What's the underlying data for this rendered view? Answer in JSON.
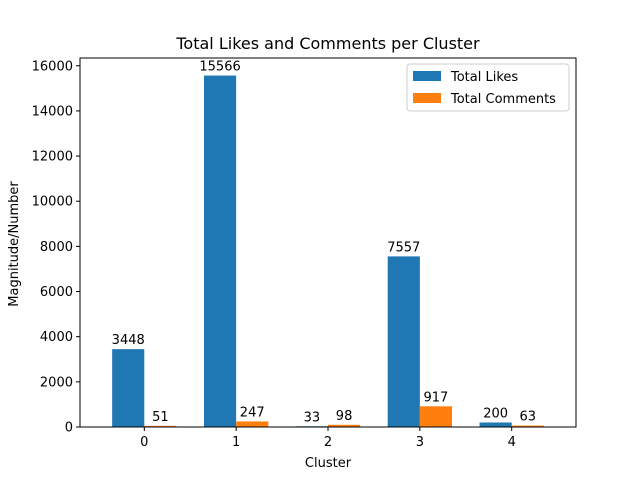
{
  "chart_data": {
    "type": "bar",
    "title": "Total Likes and Comments per Cluster",
    "xlabel": "Cluster",
    "ylabel": "Magnitude/Number",
    "categories": [
      "0",
      "1",
      "2",
      "3",
      "4"
    ],
    "series": [
      {
        "name": "Total Likes",
        "color": "#1f77b4",
        "values": [
          3448,
          15566,
          33,
          7557,
          200
        ]
      },
      {
        "name": "Total Comments",
        "color": "#ff7f0e",
        "values": [
          51,
          247,
          98,
          917,
          63
        ]
      }
    ],
    "ylim": [
      0,
      16344
    ],
    "yticks": [
      0,
      2000,
      4000,
      6000,
      8000,
      10000,
      12000,
      14000,
      16000
    ],
    "legend_position": "top-right",
    "grid": false
  }
}
